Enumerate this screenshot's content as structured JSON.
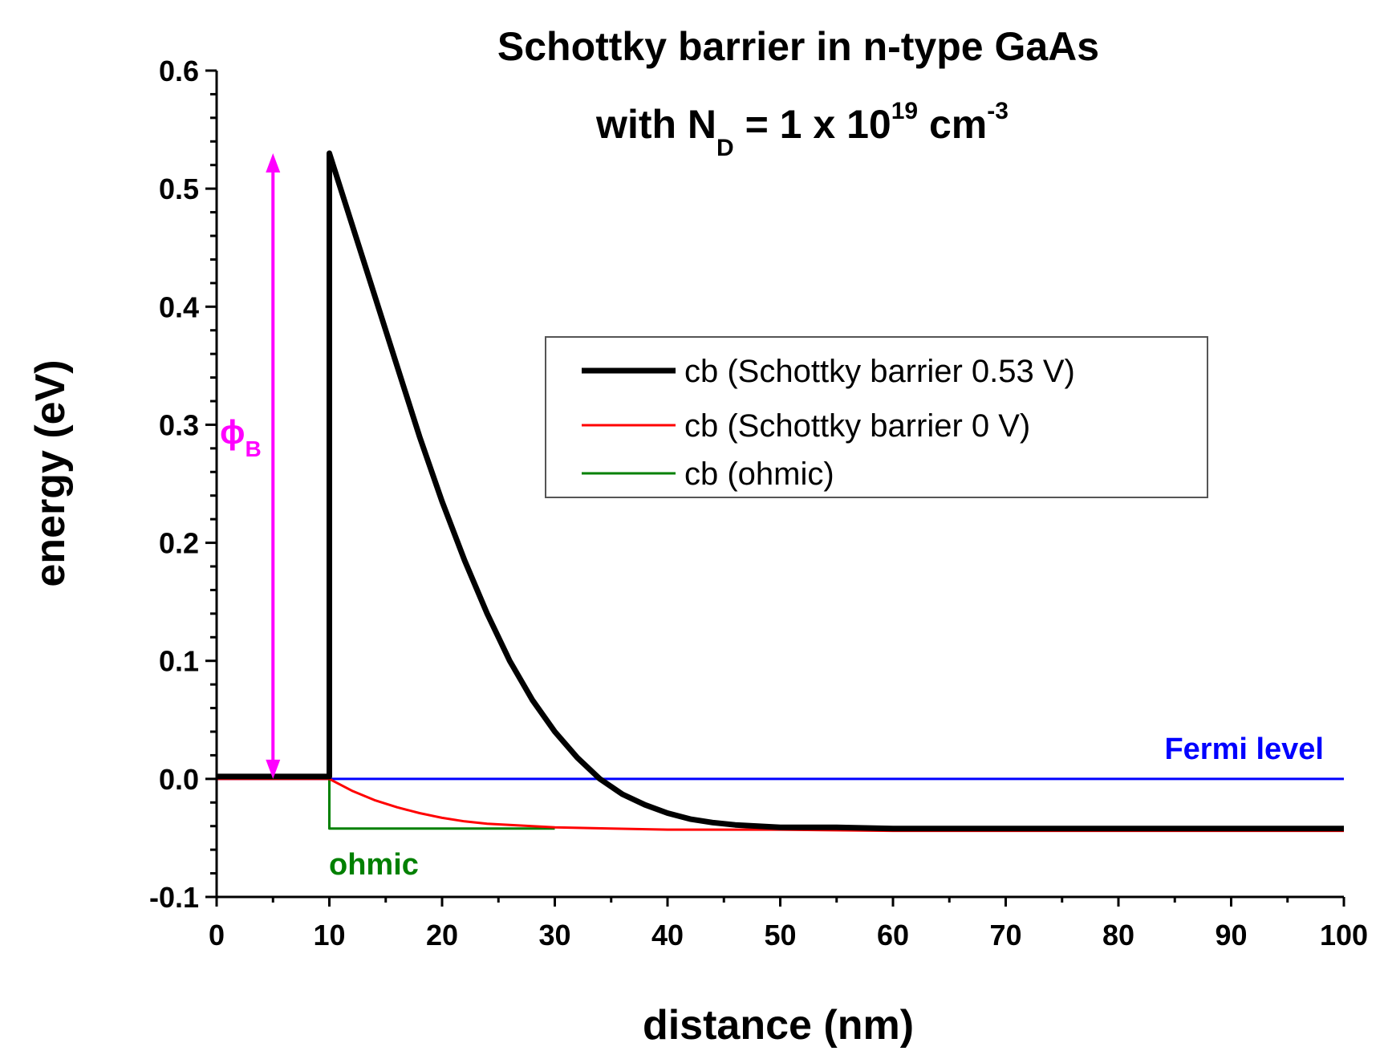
{
  "chart_data": {
    "type": "line",
    "title_line1": "Schottky barrier in n-type GaAs",
    "title_line2": {
      "prefix": "with N",
      "sub": "D",
      "middle": " = 1 x 10",
      "sup": "19",
      "unit": " cm",
      "unit_sup": "-3"
    },
    "xlabel": "distance (nm)",
    "ylabel": "energy (eV)",
    "xlim": [
      0,
      100
    ],
    "ylim": [
      -0.1,
      0.6
    ],
    "x_ticks": [
      "0",
      "10",
      "20",
      "30",
      "40",
      "50",
      "60",
      "70",
      "80",
      "90",
      "100"
    ],
    "y_ticks": [
      "-0.1",
      "0.0",
      "0.1",
      "0.2",
      "0.3",
      "0.4",
      "0.5",
      "0.6"
    ],
    "legend": {
      "placement": "center-right"
    },
    "series": [
      {
        "name": "cb (Schottky barrier 0.53 V)",
        "color": "#000000",
        "x": [
          0,
          10,
          10,
          12,
          14,
          16,
          18,
          20,
          22,
          24,
          26,
          28,
          30,
          32,
          34,
          36,
          38,
          40,
          42,
          44,
          46,
          48,
          50,
          55,
          60,
          70,
          80,
          90,
          100
        ],
        "y": [
          0.002,
          0.002,
          0.53,
          0.47,
          0.41,
          0.35,
          0.29,
          0.235,
          0.185,
          0.14,
          0.1,
          0.067,
          0.04,
          0.018,
          0.0,
          -0.013,
          -0.022,
          -0.029,
          -0.034,
          -0.037,
          -0.039,
          -0.04,
          -0.041,
          -0.041,
          -0.042,
          -0.042,
          -0.042,
          -0.042,
          -0.042
        ]
      },
      {
        "name": "cb (Schottky barrier 0 V)",
        "color": "#ff0000",
        "x": [
          0,
          10,
          12,
          14,
          16,
          18,
          20,
          22,
          24,
          26,
          28,
          30,
          35,
          40,
          50,
          60,
          70,
          80,
          90,
          100
        ],
        "y": [
          0.0,
          0.0,
          -0.01,
          -0.018,
          -0.024,
          -0.029,
          -0.033,
          -0.036,
          -0.038,
          -0.039,
          -0.04,
          -0.041,
          -0.042,
          -0.043,
          -0.043,
          -0.044,
          -0.044,
          -0.044,
          -0.044,
          -0.044
        ]
      },
      {
        "name": "cb (ohmic)",
        "color": "#008000",
        "x": [
          10,
          10,
          30
        ],
        "y": [
          0.0,
          -0.042,
          -0.042
        ]
      }
    ],
    "fermi_level": {
      "label": "Fermi level",
      "y": 0.0,
      "x": [
        0,
        100
      ],
      "color": "#0000ff"
    },
    "annotations": {
      "phi_b": {
        "symbol": "ϕ",
        "sub": "B",
        "color": "#ff00ff",
        "x": 5,
        "y_from": 0.0,
        "y_to": 0.53
      },
      "ohmic": {
        "label": "ohmic",
        "color": "#008000"
      }
    }
  }
}
